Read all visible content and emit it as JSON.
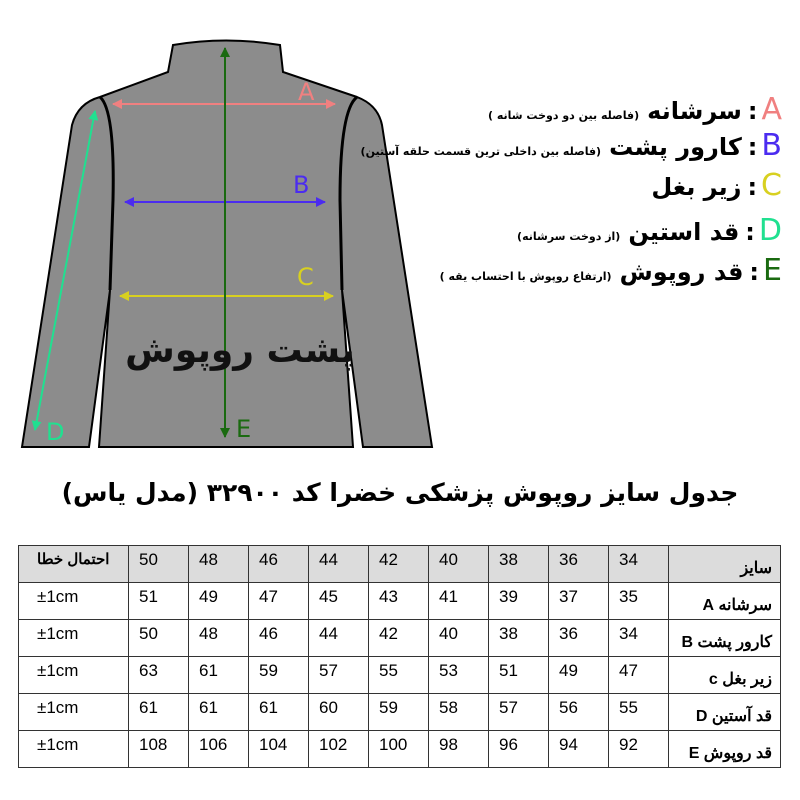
{
  "diagram": {
    "label": "پشت روپوش",
    "letters": {
      "A": "A",
      "B": "B",
      "C": "C",
      "D": "D",
      "E": "E"
    },
    "colors": {
      "A": "#f08080",
      "B": "#4b2cf0",
      "C": "#d8d020",
      "D": "#20e090",
      "E": "#1a6a10",
      "garment": "#8c8c8c"
    }
  },
  "legend": [
    {
      "letter": "A",
      "term": "سرشانه",
      "note": "(فاصله بین دو دوخت شانه )",
      "color": "#f08080"
    },
    {
      "letter": "B",
      "term": "کارور پشت",
      "note": "(فاصله بین داخلی ترین قسمت حلقه آستین)",
      "color": "#4b2cf0"
    },
    {
      "letter": "C",
      "term": "زیر بغل",
      "note": "",
      "color": "#d8d020"
    },
    {
      "letter": "D",
      "term": "قد استین",
      "note": "(از دوخت سرشانه)",
      "color": "#20e090"
    },
    {
      "letter": "E",
      "term": "قد روپوش",
      "note": "(ارتفاع روپوش با احتساب یقه )",
      "color": "#1a6a10"
    }
  ],
  "title": "جدول سایز روپوش پزشکی خضرا  کد ۳۲۹۰۰ (مدل یاس)",
  "table": {
    "header": {
      "label": "سایز",
      "sizes": [
        "34",
        "36",
        "38",
        "40",
        "42",
        "44",
        "46",
        "48",
        "50"
      ],
      "error": "احتمال خطا"
    },
    "rows": [
      {
        "label": "سرشانه  A",
        "values": [
          "35",
          "37",
          "39",
          "41",
          "43",
          "45",
          "47",
          "49",
          "51"
        ],
        "error": "±1cm"
      },
      {
        "label": "کارور پشت B",
        "values": [
          "34",
          "36",
          "38",
          "40",
          "42",
          "44",
          "46",
          "48",
          "50"
        ],
        "error": "±1cm"
      },
      {
        "label": "زیر بغل c",
        "values": [
          "47",
          "49",
          "51",
          "53",
          "55",
          "57",
          "59",
          "61",
          "63"
        ],
        "error": "±1cm"
      },
      {
        "label": "قد آستین D",
        "values": [
          "55",
          "56",
          "57",
          "58",
          "59",
          "60",
          "61",
          "61",
          "61"
        ],
        "error": "±1cm"
      },
      {
        "label": "قد روپوش E",
        "values": [
          "92",
          "94",
          "96",
          "98",
          "100",
          "102",
          "104",
          "106",
          "108"
        ],
        "error": "±1cm"
      }
    ]
  }
}
